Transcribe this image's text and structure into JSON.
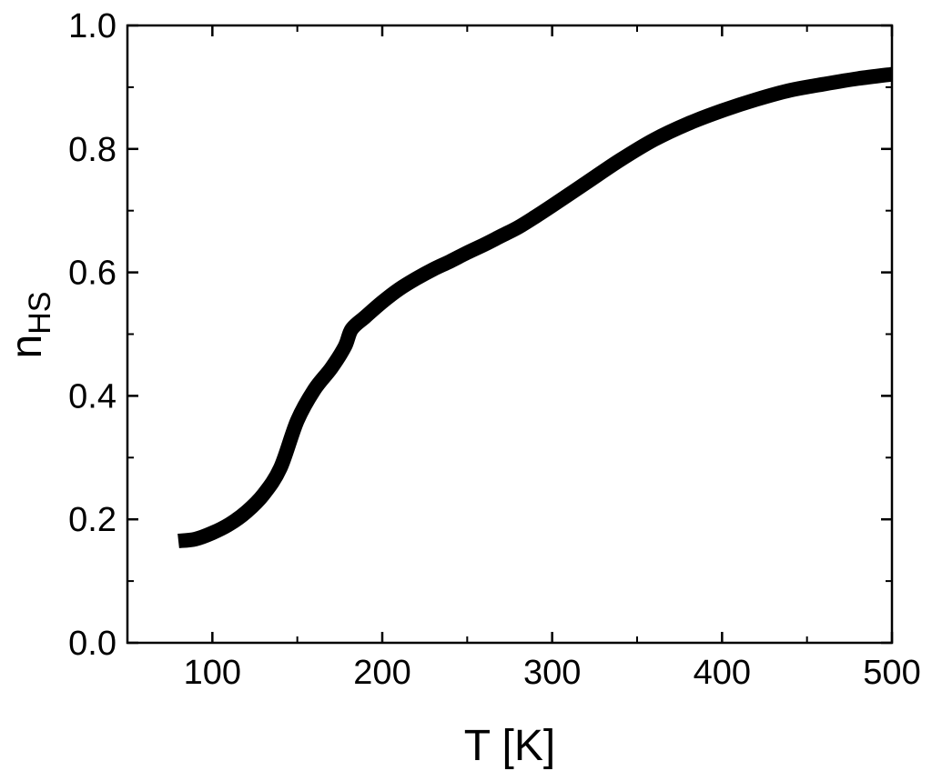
{
  "chart_data": {
    "type": "line",
    "title": "",
    "xlabel": "T [K]",
    "ylabel": {
      "main": "n",
      "subscript": "HS"
    },
    "xlim": [
      50,
      500
    ],
    "ylim": [
      0.0,
      1.0
    ],
    "x_ticks": [
      100,
      200,
      300,
      400,
      500
    ],
    "x_tick_labels": [
      "100",
      "200",
      "300",
      "400",
      "500"
    ],
    "y_ticks": [
      0.0,
      0.2,
      0.4,
      0.6,
      0.8,
      1.0
    ],
    "y_tick_labels": [
      "0.0",
      "0.2",
      "0.4",
      "0.6",
      "0.8",
      "1.0"
    ],
    "grid": false,
    "legend": "none",
    "colors": {
      "line": "#000000",
      "axes": "#000000",
      "background": "#ffffff"
    },
    "series": [
      {
        "x": [
          80,
          90,
          100,
          110,
          120,
          130,
          140,
          150,
          160,
          170,
          178,
          182,
          190,
          200,
          210,
          220,
          230,
          240,
          250,
          260,
          270,
          280,
          290,
          300,
          320,
          340,
          360,
          380,
          400,
          420,
          440,
          460,
          480,
          500
        ],
        "y": [
          0.165,
          0.168,
          0.178,
          0.192,
          0.212,
          0.24,
          0.283,
          0.36,
          0.41,
          0.445,
          0.48,
          0.508,
          0.528,
          0.552,
          0.573,
          0.59,
          0.605,
          0.618,
          0.632,
          0.645,
          0.659,
          0.673,
          0.69,
          0.708,
          0.745,
          0.782,
          0.815,
          0.841,
          0.862,
          0.88,
          0.895,
          0.905,
          0.914,
          0.921
        ]
      }
    ]
  }
}
